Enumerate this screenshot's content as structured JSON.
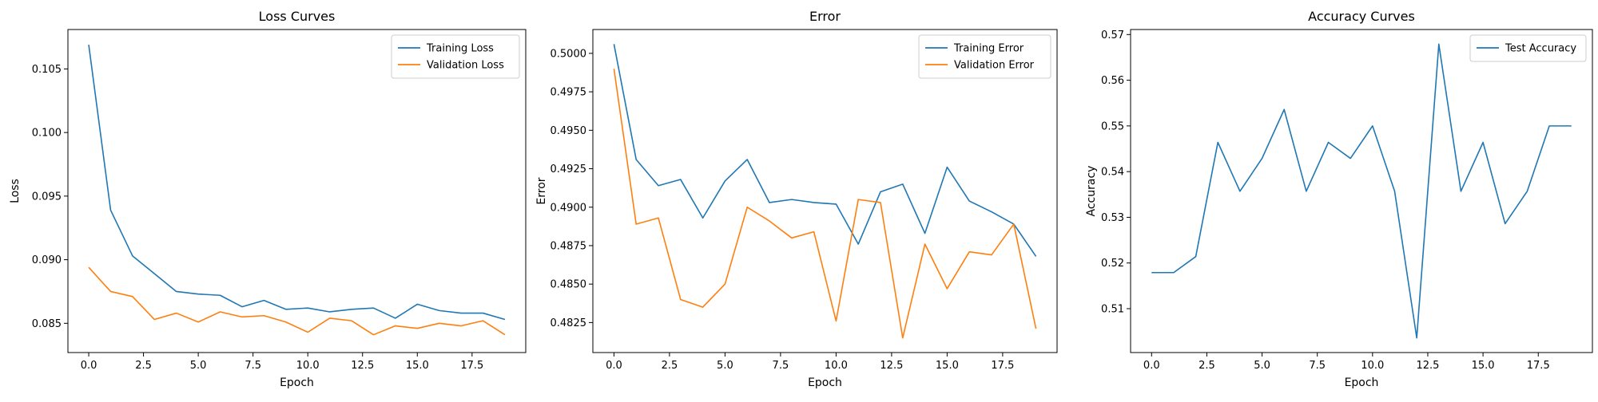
{
  "colors": {
    "blue": "#1f77b4",
    "orange": "#ff7f0e"
  },
  "chart_data": [
    {
      "type": "line",
      "title": "Loss Curves",
      "xlabel": "Epoch",
      "ylabel": "Loss",
      "xlim": [
        -0.95,
        19.95
      ],
      "ylim": [
        0.0827,
        0.1081
      ],
      "xticks": [
        0.0,
        2.5,
        5.0,
        7.5,
        10.0,
        12.5,
        15.0,
        17.5
      ],
      "xtick_labels": [
        "0.0",
        "2.5",
        "5.0",
        "7.5",
        "10.0",
        "12.5",
        "15.0",
        "17.5"
      ],
      "yticks": [
        0.085,
        0.09,
        0.095,
        0.1,
        0.105
      ],
      "ytick_labels": [
        "0.085",
        "0.090",
        "0.095",
        "0.100",
        "0.105"
      ],
      "legend": "top-right",
      "grid": false,
      "x": [
        0,
        1,
        2,
        3,
        4,
        5,
        6,
        7,
        8,
        9,
        10,
        11,
        12,
        13,
        14,
        15,
        16,
        17,
        18,
        19
      ],
      "series": [
        {
          "name": "Training Loss",
          "color": "#1f77b4",
          "values": [
            0.1069,
            0.0939,
            0.0903,
            0.0889,
            0.0875,
            0.0873,
            0.0872,
            0.0863,
            0.0868,
            0.0861,
            0.0862,
            0.0859,
            0.0861,
            0.0862,
            0.0854,
            0.0865,
            0.086,
            0.0858,
            0.0858,
            0.0853
          ]
        },
        {
          "name": "Validation Loss",
          "color": "#ff7f0e",
          "values": [
            0.0894,
            0.0875,
            0.0871,
            0.0853,
            0.0858,
            0.0851,
            0.0859,
            0.0855,
            0.0856,
            0.0851,
            0.0843,
            0.0854,
            0.0852,
            0.0841,
            0.0848,
            0.0846,
            0.085,
            0.0848,
            0.0852,
            0.0841
          ]
        }
      ]
    },
    {
      "type": "line",
      "title": "Error",
      "xlabel": "Epoch",
      "ylabel": "Error",
      "xlim": [
        -0.95,
        19.95
      ],
      "ylim": [
        0.48055,
        0.50155
      ],
      "xticks": [
        0.0,
        2.5,
        5.0,
        7.5,
        10.0,
        12.5,
        15.0,
        17.5
      ],
      "xtick_labels": [
        "0.0",
        "2.5",
        "5.0",
        "7.5",
        "10.0",
        "12.5",
        "15.0",
        "17.5"
      ],
      "yticks": [
        0.4825,
        0.485,
        0.4875,
        0.49,
        0.4925,
        0.495,
        0.4975,
        0.5
      ],
      "ytick_labels": [
        "0.4825",
        "0.4850",
        "0.4875",
        "0.4900",
        "0.4925",
        "0.4950",
        "0.4975",
        "0.5000"
      ],
      "legend": "top-right",
      "grid": false,
      "x": [
        0,
        1,
        2,
        3,
        4,
        5,
        6,
        7,
        8,
        9,
        10,
        11,
        12,
        13,
        14,
        15,
        16,
        17,
        18,
        19
      ],
      "series": [
        {
          "name": "Training Error",
          "color": "#1f77b4",
          "values": [
            0.5006,
            0.4931,
            0.4914,
            0.4918,
            0.4893,
            0.4917,
            0.4931,
            0.4903,
            0.4905,
            0.4903,
            0.4902,
            0.4876,
            0.491,
            0.4915,
            0.4883,
            0.4926,
            0.4904,
            0.4897,
            0.4889,
            0.4868
          ]
        },
        {
          "name": "Validation Error",
          "color": "#ff7f0e",
          "values": [
            0.499,
            0.4889,
            0.4893,
            0.484,
            0.4835,
            0.485,
            0.49,
            0.4891,
            0.488,
            0.4884,
            0.4826,
            0.4905,
            0.4903,
            0.4815,
            0.4876,
            0.4847,
            0.4871,
            0.4869,
            0.4889,
            0.4821
          ]
        }
      ]
    },
    {
      "type": "line",
      "title": "Accuracy Curves",
      "xlabel": "Epoch",
      "ylabel": "Accuracy",
      "xlim": [
        -0.95,
        19.95
      ],
      "ylim": [
        0.5004,
        0.5711
      ],
      "xticks": [
        0.0,
        2.5,
        5.0,
        7.5,
        10.0,
        12.5,
        15.0,
        17.5
      ],
      "xtick_labels": [
        "0.0",
        "2.5",
        "5.0",
        "7.5",
        "10.0",
        "12.5",
        "15.0",
        "17.5"
      ],
      "yticks": [
        0.51,
        0.52,
        0.53,
        0.54,
        0.55,
        0.56,
        0.57
      ],
      "ytick_labels": [
        "0.51",
        "0.52",
        "0.53",
        "0.54",
        "0.55",
        "0.56",
        "0.57"
      ],
      "legend": "top-right",
      "grid": false,
      "x": [
        0,
        1,
        2,
        3,
        4,
        5,
        6,
        7,
        8,
        9,
        10,
        11,
        12,
        13,
        14,
        15,
        16,
        17,
        18,
        19
      ],
      "series": [
        {
          "name": "Test Accuracy",
          "color": "#1f77b4",
          "values": [
            0.5179,
            0.5179,
            0.5214,
            0.5464,
            0.5357,
            0.5429,
            0.5536,
            0.5357,
            0.5464,
            0.5429,
            0.55,
            0.5357,
            0.5036,
            0.5679,
            0.5357,
            0.5464,
            0.5286,
            0.5357,
            0.55,
            0.55
          ]
        }
      ]
    }
  ]
}
